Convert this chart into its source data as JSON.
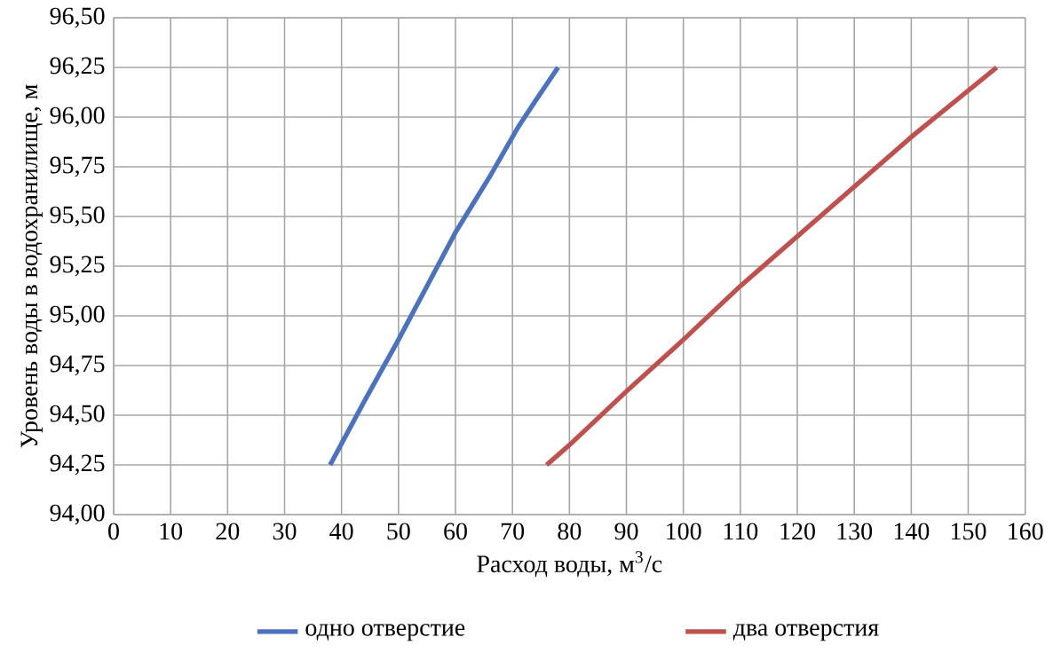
{
  "chart_data": {
    "type": "line",
    "xlabel": "Расход воды, м$^{3}$/с",
    "ylabel": "Уровень воды в водохранилище, м",
    "xlim": [
      0,
      160
    ],
    "ylim": [
      94.0,
      96.5
    ],
    "xticks": [
      0,
      10,
      20,
      30,
      40,
      50,
      60,
      70,
      80,
      90,
      100,
      110,
      120,
      130,
      140,
      150,
      160
    ],
    "yticks": [
      {
        "value": 94.0,
        "label": "94,00"
      },
      {
        "value": 94.25,
        "label": "94,25"
      },
      {
        "value": 94.5,
        "label": "94,50"
      },
      {
        "value": 94.75,
        "label": "94,75"
      },
      {
        "value": 95.0,
        "label": "95,00"
      },
      {
        "value": 95.25,
        "label": "95,25"
      },
      {
        "value": 95.5,
        "label": "95,50"
      },
      {
        "value": 95.75,
        "label": "95,75"
      },
      {
        "value": 96.0,
        "label": "96,00"
      },
      {
        "value": 96.25,
        "label": "96,25"
      },
      {
        "value": 96.5,
        "label": "96,50"
      }
    ],
    "grid": true,
    "legend": "bottom",
    "marker": "none",
    "line_style": "solid",
    "series": [
      {
        "name": "одно отверстие",
        "color": "#4a72c0",
        "x": [
          38,
          44,
          50,
          55,
          60,
          66,
          71,
          74,
          78
        ],
        "values": [
          94.25,
          94.57,
          94.88,
          95.15,
          95.42,
          95.7,
          95.95,
          96.08,
          96.25
        ]
      },
      {
        "name": "два отверстия",
        "color": "#c0504d",
        "x": [
          76,
          80,
          90,
          100,
          110,
          120,
          130,
          140,
          146,
          155
        ],
        "values": [
          94.25,
          94.35,
          94.62,
          94.88,
          95.15,
          95.4,
          95.65,
          95.9,
          96.04,
          96.25
        ]
      }
    ]
  }
}
